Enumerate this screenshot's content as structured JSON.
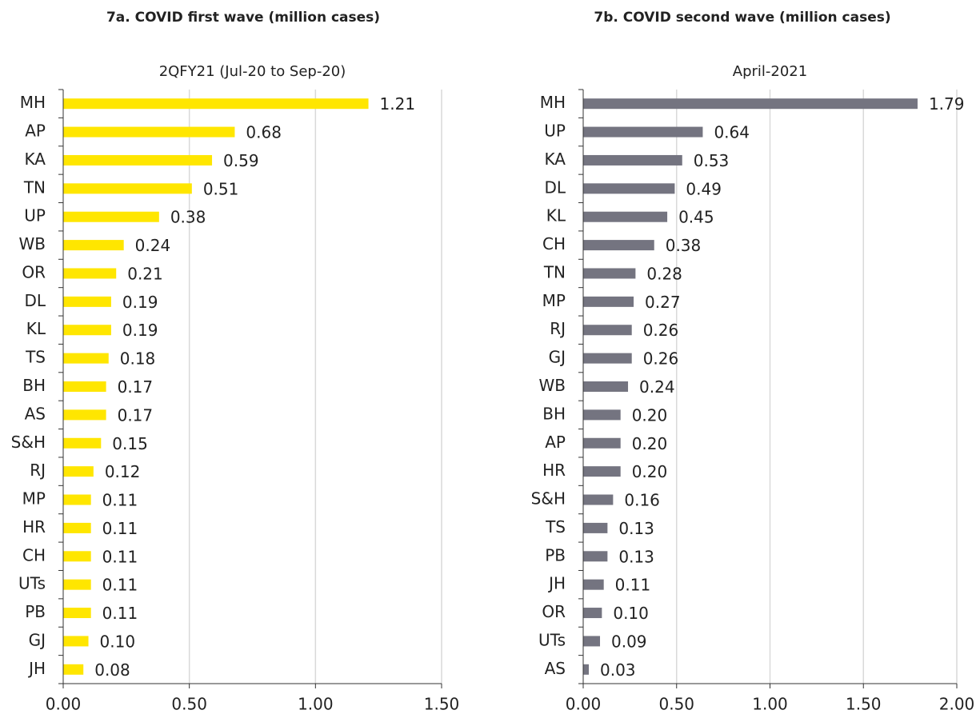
{
  "chart_data": [
    {
      "type": "bar",
      "orientation": "horizontal",
      "title": "7a. COVID first wave (million cases)",
      "subtitle": "2QFY21 (Jul-20 to Sep-20)",
      "color": "#ffe600",
      "grid": true,
      "categories": [
        "MH",
        "AP",
        "KA",
        "TN",
        "UP",
        "WB",
        "OR",
        "DL",
        "KL",
        "TS",
        "BH",
        "AS",
        "S&H",
        "RJ",
        "MP",
        "HR",
        "CH",
        "UTs",
        "PB",
        "GJ",
        "JH"
      ],
      "values": [
        1.21,
        0.68,
        0.59,
        0.51,
        0.38,
        0.24,
        0.21,
        0.19,
        0.19,
        0.18,
        0.17,
        0.17,
        0.15,
        0.12,
        0.11,
        0.11,
        0.11,
        0.11,
        0.11,
        0.1,
        0.08
      ],
      "value_labels": [
        "1.21",
        "0.68",
        "0.59",
        "0.51",
        "0.38",
        "0.24",
        "0.21",
        "0.19",
        "0.19",
        "0.18",
        "0.17",
        "0.17",
        "0.15",
        "0.12",
        "0.11",
        "0.11",
        "0.11",
        "0.11",
        "0.11",
        "0.10",
        "0.08"
      ],
      "xlim": [
        0,
        1.5
      ],
      "xticks": [
        {
          "value": 0,
          "label": "0.00"
        },
        {
          "value": 0.5,
          "label": "0.50"
        },
        {
          "value": 1,
          "label": "1.00"
        },
        {
          "value": 1.5,
          "label": "1.50"
        }
      ]
    },
    {
      "type": "bar",
      "orientation": "horizontal",
      "title": "7b. COVID second wave (million cases)",
      "subtitle": "April-2021",
      "color": "#747480",
      "grid": true,
      "categories": [
        "MH",
        "UP",
        "KA",
        "DL",
        "KL",
        "CH",
        "TN",
        "MP",
        "RJ",
        "GJ",
        "WB",
        "BH",
        "AP",
        "HR",
        "S&H",
        "TS",
        "PB",
        "JH",
        "OR",
        "UTs",
        "AS"
      ],
      "values": [
        1.79,
        0.64,
        0.53,
        0.49,
        0.45,
        0.38,
        0.28,
        0.27,
        0.26,
        0.26,
        0.24,
        0.2,
        0.2,
        0.2,
        0.16,
        0.13,
        0.13,
        0.11,
        0.1,
        0.09,
        0.03
      ],
      "value_labels": [
        "1.79",
        "0.64",
        "0.53",
        "0.49",
        "0.45",
        "0.38",
        "0.28",
        "0.27",
        "0.26",
        "0.26",
        "0.24",
        "0.20",
        "0.20",
        "0.20",
        "0.16",
        "0.13",
        "0.13",
        "0.11",
        "0.10",
        "0.09",
        "0.03"
      ],
      "xlim": [
        0,
        2
      ],
      "xticks": [
        {
          "value": 0,
          "label": "0.00"
        },
        {
          "value": 0.5,
          "label": "0.50"
        },
        {
          "value": 1,
          "label": "1.00"
        },
        {
          "value": 1.5,
          "label": "1.50"
        },
        {
          "value": 2,
          "label": "2.00"
        }
      ]
    }
  ]
}
